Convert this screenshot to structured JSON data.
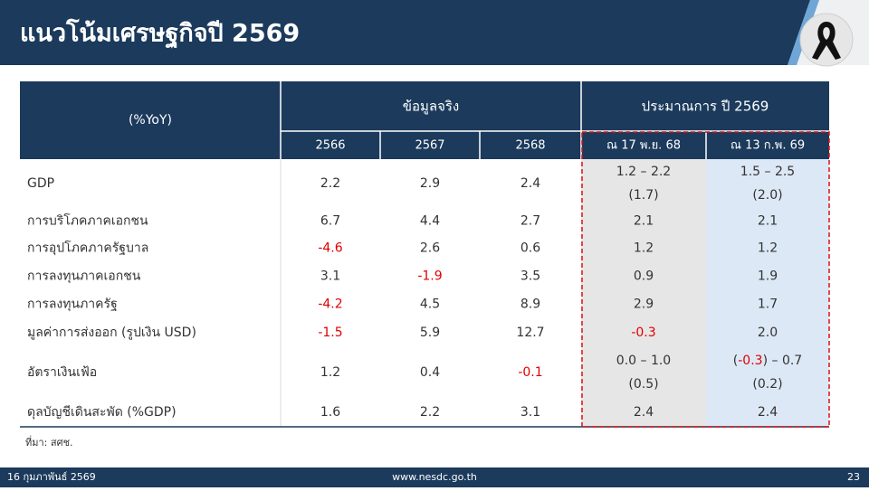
{
  "header": {
    "title": "แนวโน้มเศรษฐกิจปี 2569"
  },
  "table": {
    "corner": "(%YoY)",
    "groups": [
      "ข้อมูลจริง",
      "ประมาณการ ปี 2569"
    ],
    "columns": [
      "2566",
      "2567",
      "2568",
      "ณ 17 พ.ย. 68",
      "ณ 13 ก.พ. 69"
    ],
    "rows": [
      {
        "label": "GDP",
        "cells": [
          "2.2",
          "2.9",
          "2.4",
          [
            "1.2 – 2.2",
            "(1.7)"
          ],
          [
            "1.5 – 2.5",
            "(2.0)"
          ]
        ]
      },
      {
        "label": "การบริโภคภาคเอกชน",
        "cells": [
          "6.7",
          "4.4",
          "2.7",
          "2.1",
          "2.1"
        ]
      },
      {
        "label": "การอุปโภคภาครัฐบาล",
        "cells": [
          "-4.6",
          "2.6",
          "0.6",
          "1.2",
          "1.2"
        ]
      },
      {
        "label": "การลงทุนภาคเอกชน",
        "cells": [
          "3.1",
          "-1.9",
          "3.5",
          "0.9",
          "1.9"
        ]
      },
      {
        "label": "การลงทุนภาครัฐ",
        "cells": [
          "-4.2",
          "4.5",
          "8.9",
          "2.9",
          "1.7"
        ]
      },
      {
        "label": "มูลค่าการส่งออก (รูปเงิน USD)",
        "cells": [
          "-1.5",
          "5.9",
          "12.7",
          "-0.3",
          "2.0"
        ]
      },
      {
        "label": "อัตราเงินเฟ้อ",
        "cells": [
          "1.2",
          "0.4",
          "-0.1",
          [
            "0.0 – 1.0",
            "(0.5)"
          ],
          [
            [
              "(",
              "-0.3",
              ") – 0.7"
            ],
            "(0.2)"
          ]
        ]
      },
      {
        "label": "ดุลบัญชีเดินสะพัด (%GDP)",
        "cells": [
          "1.6",
          "2.2",
          "3.1",
          "2.4",
          "2.4"
        ]
      }
    ],
    "source": "ที่มา: สศช."
  },
  "footer": {
    "date": "16 กุมภาพันธ์ 2569",
    "url": "www.nesdc.go.th",
    "page": "23"
  }
}
